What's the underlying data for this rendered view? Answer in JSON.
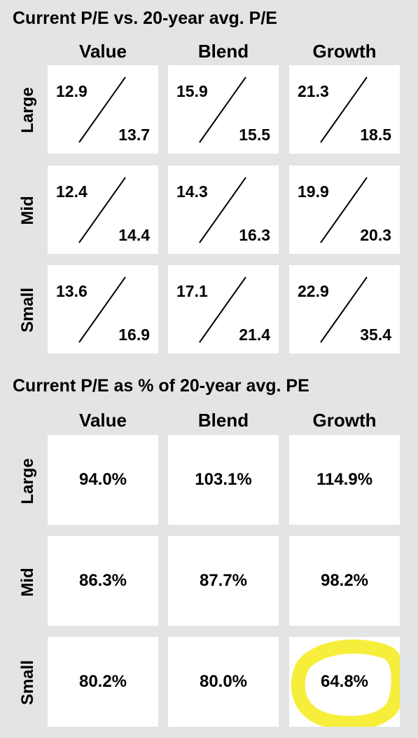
{
  "chart_data": [
    {
      "type": "table",
      "title": "Current P/E vs. 20-year avg. P/E",
      "columns": [
        "Value",
        "Blend",
        "Growth"
      ],
      "rows": [
        "Large",
        "Mid",
        "Small"
      ],
      "cells": [
        [
          {
            "current": "12.9",
            "avg": "13.7"
          },
          {
            "current": "15.9",
            "avg": "15.5"
          },
          {
            "current": "21.3",
            "avg": "18.5"
          }
        ],
        [
          {
            "current": "12.4",
            "avg": "14.4"
          },
          {
            "current": "14.3",
            "avg": "16.3"
          },
          {
            "current": "19.9",
            "avg": "20.3"
          }
        ],
        [
          {
            "current": "13.6",
            "avg": "16.9"
          },
          {
            "current": "17.1",
            "avg": "21.4"
          },
          {
            "current": "22.9",
            "avg": "35.4"
          }
        ]
      ]
    },
    {
      "type": "table",
      "title": "Current P/E as % of 20-year avg. PE",
      "columns": [
        "Value",
        "Blend",
        "Growth"
      ],
      "rows": [
        "Large",
        "Mid",
        "Small"
      ],
      "cells": [
        [
          "94.0%",
          "103.1%",
          "114.9%"
        ],
        [
          "86.3%",
          "87.7%",
          "98.2%"
        ],
        [
          "80.2%",
          "80.0%",
          "64.8%"
        ]
      ],
      "highlight": {
        "row": 2,
        "col": 2,
        "color": "#f7ee3c"
      }
    }
  ]
}
